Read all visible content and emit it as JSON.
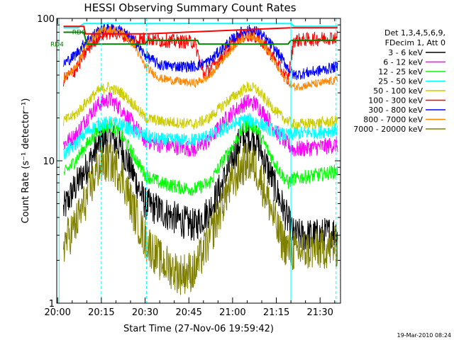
{
  "chart_data": {
    "type": "line",
    "title": "HESSI Observing Summary Count Rates",
    "xlabel": "Start Time (27-Nov-06 19:59:42)",
    "ylabel": "Count Rate (s⁻¹ detector⁻¹)",
    "y_scale": "log",
    "ylim": [
      1,
      100
    ],
    "xlim": [
      "19:59:42",
      "21:37:00"
    ],
    "x_ticks": [
      "20:00",
      "20:15",
      "20:30",
      "20:45",
      "21:00",
      "21:15",
      "21:30"
    ],
    "y_ticks": [
      "1",
      "10",
      "100"
    ],
    "grid": false,
    "legend_placement": "right",
    "legend_header": [
      "Det 1,3,4,5,6,9,",
      "FDecim 1, Att 0"
    ],
    "footer_timestamp": "19-Mar-2010 08:24",
    "state_labels": [
      {
        "text": "RD0",
        "color": "#008000",
        "y": 80
      },
      {
        "text": "RD4",
        "color": "#008000",
        "y": 66
      }
    ],
    "vertical_markers": [
      {
        "x": "20:00:30",
        "color": "#00ffff",
        "style": "solid"
      },
      {
        "x": "20:15:00",
        "color": "#00ffff",
        "style": "dashed"
      },
      {
        "x": "20:30:30",
        "color": "#00ffff",
        "style": "dashed"
      },
      {
        "x": "21:20:00",
        "color": "#00ffff",
        "style": "solid"
      },
      {
        "x": "21:35:30",
        "color": "#00ffff",
        "style": "dashed"
      }
    ],
    "series": [
      {
        "name": "3 - 6 keV",
        "color": "#000000",
        "noise": 0.12,
        "points": [
          [
            "20:00:00",
            0
          ],
          [
            "20:02:00",
            4.5
          ],
          [
            "20:05:00",
            6
          ],
          [
            "20:10:00",
            9
          ],
          [
            "20:15:00",
            14
          ],
          [
            "20:18:00",
            15
          ],
          [
            "20:22:00",
            12
          ],
          [
            "20:26:00",
            8
          ],
          [
            "20:30:00",
            5
          ],
          [
            "20:35:00",
            4.5
          ],
          [
            "20:42:00",
            3.8
          ],
          [
            "20:47:00",
            3.5
          ],
          [
            "20:52:00",
            4.5
          ],
          [
            "20:58:00",
            8
          ],
          [
            "21:02:00",
            13
          ],
          [
            "21:05:00",
            15
          ],
          [
            "21:08:00",
            14
          ],
          [
            "21:12:00",
            9
          ],
          [
            "21:16:00",
            5.5
          ],
          [
            "21:19:00",
            3.8
          ],
          [
            "21:21:00",
            3.0
          ],
          [
            "21:30:00",
            3.0
          ],
          [
            "21:36:00",
            3.2
          ]
        ]
      },
      {
        "name": "6 - 12 keV",
        "color": "#ff00ff",
        "noise": 0.06,
        "points": [
          [
            "20:00:00",
            0
          ],
          [
            "20:02:00",
            13
          ],
          [
            "20:06:00",
            15
          ],
          [
            "20:10:00",
            20
          ],
          [
            "20:14:00",
            25
          ],
          [
            "20:18:00",
            27
          ],
          [
            "20:22:00",
            23
          ],
          [
            "20:26:00",
            18
          ],
          [
            "20:30:00",
            14
          ],
          [
            "20:35:00",
            13
          ],
          [
            "20:42:00",
            12.5
          ],
          [
            "20:47:00",
            12
          ],
          [
            "20:52:00",
            14
          ],
          [
            "20:58:00",
            20
          ],
          [
            "21:03:00",
            24.5
          ],
          [
            "21:05:00",
            26
          ],
          [
            "21:08:00",
            25
          ],
          [
            "21:12:00",
            20
          ],
          [
            "21:16:00",
            15
          ],
          [
            "21:19:00",
            13
          ],
          [
            "21:21:00",
            12
          ],
          [
            "21:30:00",
            12.5
          ],
          [
            "21:36:00",
            13
          ]
        ]
      },
      {
        "name": "12 - 25 keV",
        "color": "#00ff00",
        "noise": 0.05,
        "points": [
          [
            "20:00:00",
            0
          ],
          [
            "20:02:00",
            8
          ],
          [
            "20:06:00",
            10
          ],
          [
            "20:10:00",
            13
          ],
          [
            "20:14:00",
            16.5
          ],
          [
            "20:18:00",
            18
          ],
          [
            "20:22:00",
            15
          ],
          [
            "20:26:00",
            11
          ],
          [
            "20:30:00",
            8
          ],
          [
            "20:35:00",
            7
          ],
          [
            "20:42:00",
            6.5
          ],
          [
            "20:47:00",
            6.3
          ],
          [
            "20:52:00",
            7
          ],
          [
            "20:58:00",
            11
          ],
          [
            "21:03:00",
            16
          ],
          [
            "21:05:00",
            18
          ],
          [
            "21:08:00",
            17
          ],
          [
            "21:12:00",
            12
          ],
          [
            "21:16:00",
            8.5
          ],
          [
            "21:19:00",
            7
          ],
          [
            "21:21:00",
            7.5
          ],
          [
            "21:30:00",
            8
          ],
          [
            "21:36:00",
            8.5
          ]
        ]
      },
      {
        "name": "25 - 50 keV",
        "color": "#00ffff",
        "noise": 0.05,
        "points": [
          [
            "20:00:00",
            0
          ],
          [
            "20:02:00",
            11
          ],
          [
            "20:06:00",
            13
          ],
          [
            "20:10:00",
            16
          ],
          [
            "20:14:00",
            18
          ],
          [
            "20:18:00",
            18.5
          ],
          [
            "20:22:00",
            18
          ],
          [
            "20:26:00",
            16
          ],
          [
            "20:30:00",
            15
          ],
          [
            "20:35:00",
            14
          ],
          [
            "20:42:00",
            14
          ],
          [
            "20:47:00",
            14
          ],
          [
            "20:52:00",
            15
          ],
          [
            "20:58:00",
            17
          ],
          [
            "21:03:00",
            19
          ],
          [
            "21:05:00",
            19.5
          ],
          [
            "21:08:00",
            19
          ],
          [
            "21:12:00",
            17
          ],
          [
            "21:16:00",
            15.5
          ],
          [
            "21:19:00",
            15
          ],
          [
            "21:21:00",
            15.5
          ],
          [
            "21:30:00",
            16
          ],
          [
            "21:36:00",
            16.5
          ]
        ]
      },
      {
        "name": "50 - 100 keV",
        "color": "#cccc00",
        "noise": 0.04,
        "points": [
          [
            "20:00:00",
            0
          ],
          [
            "20:02:00",
            19
          ],
          [
            "20:06:00",
            21
          ],
          [
            "20:10:00",
            26
          ],
          [
            "20:14:00",
            31
          ],
          [
            "20:17:00",
            33
          ],
          [
            "20:22:00",
            30
          ],
          [
            "20:26:00",
            25
          ],
          [
            "20:30:00",
            20
          ],
          [
            "20:35:00",
            19
          ],
          [
            "20:42:00",
            18.5
          ],
          [
            "20:47:00",
            18
          ],
          [
            "20:52:00",
            20
          ],
          [
            "20:58:00",
            26
          ],
          [
            "21:03:00",
            31
          ],
          [
            "21:05:00",
            33
          ],
          [
            "21:08:00",
            32
          ],
          [
            "21:12:00",
            26
          ],
          [
            "21:16:00",
            21
          ],
          [
            "21:19:00",
            19
          ],
          [
            "21:21:00",
            18
          ],
          [
            "21:30:00",
            18.5
          ],
          [
            "21:36:00",
            19
          ]
        ]
      },
      {
        "name": "100 - 300 keV",
        "color": "#ff0000",
        "noise": 0.05,
        "points": [
          [
            "20:00:00",
            0
          ],
          [
            "20:02:00",
            37
          ],
          [
            "20:06:00",
            43
          ],
          [
            "20:10:00",
            60
          ],
          [
            "20:14:00",
            75
          ],
          [
            "20:18:00",
            80
          ],
          [
            "20:22:00",
            78
          ],
          [
            "20:26:00",
            70
          ],
          [
            "20:30:00",
            72
          ],
          [
            "20:35:00",
            70
          ],
          [
            "20:42:00",
            69
          ],
          [
            "20:47:00",
            68
          ],
          [
            "20:50:00",
            40
          ],
          [
            "20:55:00",
            50
          ],
          [
            "21:00:00",
            67
          ],
          [
            "21:03:00",
            75
          ],
          [
            "21:06:00",
            77
          ],
          [
            "21:09:00",
            73
          ],
          [
            "21:13:00",
            57
          ],
          [
            "21:17:00",
            42
          ],
          [
            "21:19:00",
            37
          ],
          [
            "21:21:00",
            70
          ],
          [
            "21:30:00",
            72
          ],
          [
            "21:36:00",
            74
          ]
        ]
      },
      {
        "name": "300 - 800 keV",
        "color": "#0000ff",
        "noise": 0.04,
        "points": [
          [
            "20:00:00",
            0
          ],
          [
            "20:02:00",
            48
          ],
          [
            "20:06:00",
            55
          ],
          [
            "20:10:00",
            70
          ],
          [
            "20:14:00",
            82
          ],
          [
            "20:17:00",
            86
          ],
          [
            "20:22:00",
            82
          ],
          [
            "20:26:00",
            70
          ],
          [
            "20:30:00",
            55
          ],
          [
            "20:35:00",
            47
          ],
          [
            "20:42:00",
            46
          ],
          [
            "20:47:00",
            46
          ],
          [
            "20:52:00",
            50
          ],
          [
            "20:58:00",
            66
          ],
          [
            "21:03:00",
            80
          ],
          [
            "21:06:00",
            83
          ],
          [
            "21:09:00",
            80
          ],
          [
            "21:13:00",
            66
          ],
          [
            "21:17:00",
            52
          ],
          [
            "21:19:00",
            45
          ],
          [
            "21:21:00",
            40
          ],
          [
            "21:30:00",
            43
          ],
          [
            "21:36:00",
            46
          ]
        ]
      },
      {
        "name": "800 - 7000 keV",
        "color": "#ff8800",
        "noise": 0.03,
        "points": [
          [
            "20:00:00",
            0
          ],
          [
            "20:02:00",
            38
          ],
          [
            "20:06:00",
            45
          ],
          [
            "20:10:00",
            65
          ],
          [
            "20:14:00",
            80
          ],
          [
            "20:17:00",
            84
          ],
          [
            "20:22:00",
            79
          ],
          [
            "20:26:00",
            66
          ],
          [
            "20:30:00",
            46
          ],
          [
            "20:35:00",
            38
          ],
          [
            "20:42:00",
            36
          ],
          [
            "20:47:00",
            35
          ],
          [
            "20:52:00",
            39
          ],
          [
            "20:58:00",
            56
          ],
          [
            "21:03:00",
            72
          ],
          [
            "21:06:00",
            76
          ],
          [
            "21:09:00",
            72
          ],
          [
            "21:13:00",
            55
          ],
          [
            "21:17:00",
            40
          ],
          [
            "21:19:00",
            36
          ],
          [
            "21:21:00",
            33
          ],
          [
            "21:30:00",
            35
          ],
          [
            "21:36:00",
            37
          ]
        ]
      },
      {
        "name": "7000 - 20000 keV",
        "color": "#808000",
        "noise": 0.15,
        "points": [
          [
            "20:00:00",
            0
          ],
          [
            "20:02:00",
            2.6
          ],
          [
            "20:06:00",
            3.5
          ],
          [
            "20:10:00",
            5.5
          ],
          [
            "20:14:00",
            9
          ],
          [
            "20:18:00",
            10
          ],
          [
            "20:22:00",
            8
          ],
          [
            "20:26:00",
            4.5
          ],
          [
            "20:30:00",
            2.8
          ],
          [
            "20:35:00",
            2.0
          ],
          [
            "20:42:00",
            1.6
          ],
          [
            "20:47:00",
            1.7
          ],
          [
            "20:52:00",
            2.8
          ],
          [
            "20:58:00",
            6
          ],
          [
            "21:03:00",
            9
          ],
          [
            "21:05:00",
            10
          ],
          [
            "21:08:00",
            9
          ],
          [
            "21:12:00",
            5.5
          ],
          [
            "21:16:00",
            3.0
          ],
          [
            "21:19:00",
            2.4
          ],
          [
            "21:21:00",
            2.3
          ],
          [
            "21:30:00",
            2.4
          ],
          [
            "21:36:00",
            2.5
          ]
        ]
      },
      {
        "name": "",
        "color": "#00ffff",
        "noise": 0.0,
        "points": [
          [
            "20:00:00",
            0
          ],
          [
            "20:02:00",
            86
          ],
          [
            "20:07:00",
            86
          ],
          [
            "20:09:00",
            92
          ],
          [
            "21:20:00",
            92
          ],
          [
            "21:21:00",
            88
          ],
          [
            "21:36:00",
            88
          ]
        ]
      },
      {
        "name": "",
        "color": "#ff0000",
        "noise": 0.0,
        "points": [
          [
            "20:00:00",
            0
          ],
          [
            "20:02:00",
            88
          ],
          [
            "20:09:00",
            88
          ],
          [
            "20:09:30",
            78
          ],
          [
            "20:31:00",
            78
          ],
          [
            "21:20:00",
            86
          ],
          [
            "21:36:00",
            86
          ]
        ]
      },
      {
        "name": "",
        "color": "#008000",
        "noise": 0.0,
        "points": [
          [
            "20:00:00",
            0
          ],
          [
            "20:02:00",
            80
          ],
          [
            "20:09:00",
            80
          ],
          [
            "20:10:00",
            66
          ],
          [
            "20:30:00",
            66
          ],
          [
            "20:31:00",
            70
          ],
          [
            "20:48:00",
            70
          ],
          [
            "20:48:30",
            66
          ],
          [
            "21:19:00",
            66
          ],
          [
            "21:20:00",
            70
          ],
          [
            "21:36:00",
            70
          ]
        ]
      }
    ]
  }
}
